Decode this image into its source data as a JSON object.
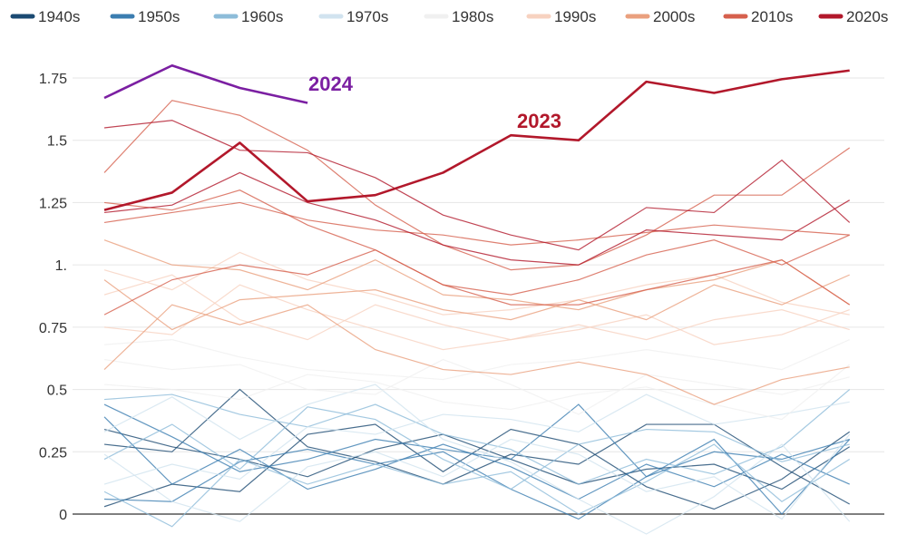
{
  "chart_data": {
    "type": "line",
    "title": "",
    "xlabel": "",
    "ylabel": "",
    "x": [
      1,
      2,
      3,
      4,
      5,
      6,
      7,
      8,
      9,
      10,
      11,
      12
    ],
    "ylim": [
      0,
      1.75
    ],
    "y_ticks": [
      0,
      0.25,
      0.5,
      0.75,
      1,
      1.25,
      1.5,
      1.75
    ],
    "y_tick_labels": [
      "0",
      "0.25",
      "0.5",
      "0.75",
      "1.",
      "1.25",
      "1.5",
      "1.75"
    ],
    "grid": true,
    "legend_position": "top",
    "legend": [
      {
        "label": "1940s",
        "color": "#1b4a72"
      },
      {
        "label": "1950s",
        "color": "#3b7db0"
      },
      {
        "label": "1960s",
        "color": "#8dbcd9"
      },
      {
        "label": "1970s",
        "color": "#d1e3ef"
      },
      {
        "label": "1980s",
        "color": "#f0f0f0"
      },
      {
        "label": "1990s",
        "color": "#f7d2c0"
      },
      {
        "label": "2000s",
        "color": "#eaa07e"
      },
      {
        "label": "2010s",
        "color": "#d6604d"
      },
      {
        "label": "2020s",
        "color": "#b2182b"
      }
    ],
    "series": [
      {
        "decade": "1940s",
        "values": [
          0.03,
          0.12,
          0.09,
          0.32,
          0.36,
          0.17,
          0.34,
          0.28,
          0.11,
          0.02,
          0.14,
          0.33
        ]
      },
      {
        "decade": "1940s",
        "values": [
          0.34,
          0.27,
          0.22,
          0.15,
          0.26,
          0.32,
          0.22,
          0.12,
          0.18,
          0.2,
          0.1,
          0.27
        ]
      },
      {
        "decade": "1940s",
        "values": [
          0.28,
          0.25,
          0.5,
          0.27,
          0.21,
          0.12,
          0.24,
          0.2,
          0.36,
          0.36,
          0.19,
          0.04
        ]
      },
      {
        "decade": "1950s",
        "values": [
          0.06,
          0.05,
          0.21,
          0.26,
          0.2,
          0.25,
          0.1,
          -0.02,
          0.15,
          0.25,
          0.22,
          0.3
        ]
      },
      {
        "decade": "1950s",
        "values": [
          0.39,
          0.12,
          0.26,
          0.1,
          0.18,
          0.28,
          0.19,
          0.06,
          0.2,
          0.11,
          0.24,
          0.12
        ]
      },
      {
        "decade": "1950s",
        "values": [
          0.44,
          0.31,
          0.17,
          0.22,
          0.3,
          0.26,
          0.22,
          0.44,
          0.15,
          0.3,
          0.0,
          0.3
        ]
      },
      {
        "decade": "1960s",
        "values": [
          0.22,
          0.36,
          0.18,
          0.43,
          0.38,
          0.22,
          0.1,
          0.28,
          0.34,
          0.33,
          0.21,
          0.28
        ]
      },
      {
        "decade": "1960s",
        "values": [
          0.46,
          0.48,
          0.4,
          0.35,
          0.44,
          0.32,
          0.26,
          0.12,
          0.22,
          0.16,
          0.27,
          0.5
        ]
      },
      {
        "decade": "1960s",
        "values": [
          0.09,
          -0.05,
          0.22,
          0.12,
          0.2,
          0.12,
          0.17,
          0.0,
          0.13,
          0.28,
          0.05,
          0.22
        ]
      },
      {
        "decade": "1970s",
        "values": [
          0.33,
          0.47,
          0.3,
          0.44,
          0.52,
          0.3,
          0.21,
          0.06,
          -0.08,
          0.07,
          0.28,
          -0.03
        ]
      },
      {
        "decade": "1970s",
        "values": [
          0.12,
          0.2,
          0.14,
          0.35,
          0.32,
          0.4,
          0.38,
          0.33,
          0.48,
          0.36,
          0.4,
          0.45
        ]
      },
      {
        "decade": "1970s",
        "values": [
          0.24,
          0.05,
          -0.03,
          0.19,
          0.25,
          0.15,
          0.3,
          0.24,
          0.09,
          0.15,
          -0.02,
          0.32
        ]
      },
      {
        "decade": "1980s",
        "values": [
          0.52,
          0.5,
          0.46,
          0.56,
          0.53,
          0.45,
          0.42,
          0.48,
          0.51,
          0.44,
          0.38,
          0.6
        ]
      },
      {
        "decade": "1980s",
        "values": [
          0.62,
          0.58,
          0.6,
          0.5,
          0.48,
          0.62,
          0.52,
          0.4,
          0.56,
          0.52,
          0.48,
          0.55
        ]
      },
      {
        "decade": "1980s",
        "values": [
          0.68,
          0.7,
          0.63,
          0.58,
          0.56,
          0.54,
          0.6,
          0.62,
          0.66,
          0.62,
          0.58,
          0.7
        ]
      },
      {
        "decade": "1990s",
        "values": [
          0.75,
          0.72,
          0.92,
          0.82,
          0.74,
          0.66,
          0.7,
          0.76,
          0.7,
          0.78,
          0.82,
          0.74
        ]
      },
      {
        "decade": "1990s",
        "values": [
          0.88,
          0.96,
          0.78,
          0.7,
          0.84,
          0.76,
          0.7,
          0.74,
          0.8,
          0.68,
          0.72,
          0.82
        ]
      },
      {
        "decade": "1990s",
        "values": [
          0.98,
          0.9,
          1.05,
          0.94,
          0.88,
          0.8,
          0.82,
          0.86,
          0.92,
          0.96,
          0.85,
          0.8
        ]
      },
      {
        "decade": "2000s",
        "values": [
          0.58,
          0.84,
          0.76,
          0.84,
          0.66,
          0.58,
          0.56,
          0.61,
          0.56,
          0.44,
          0.54,
          0.59
        ]
      },
      {
        "decade": "2000s",
        "values": [
          0.94,
          0.74,
          0.86,
          0.88,
          0.9,
          0.82,
          0.78,
          0.86,
          0.78,
          0.92,
          0.84,
          0.96
        ]
      },
      {
        "decade": "2000s",
        "values": [
          1.1,
          1.0,
          0.98,
          0.9,
          1.02,
          0.88,
          0.86,
          0.82,
          0.9,
          0.94,
          1.02,
          0.84
        ]
      },
      {
        "decade": "2010s",
        "values": [
          1.17,
          1.21,
          1.25,
          1.18,
          1.14,
          1.12,
          1.08,
          1.1,
          1.13,
          1.16,
          1.14,
          1.12
        ]
      },
      {
        "decade": "2010s",
        "values": [
          0.8,
          0.94,
          1.0,
          0.96,
          1.06,
          0.92,
          0.84,
          0.84,
          0.9,
          0.96,
          1.02,
          0.84
        ]
      },
      {
        "decade": "2010s",
        "values": [
          1.37,
          1.66,
          1.6,
          1.46,
          1.24,
          1.08,
          0.98,
          1.0,
          1.12,
          1.28,
          1.28,
          1.47
        ]
      },
      {
        "decade": "2010s",
        "values": [
          1.25,
          1.22,
          1.3,
          1.16,
          1.06,
          0.92,
          0.88,
          0.94,
          1.04,
          1.1,
          1.0,
          1.12
        ]
      },
      {
        "decade": "2020s",
        "values": [
          1.55,
          1.58,
          1.46,
          1.45,
          1.35,
          1.2,
          1.12,
          1.06,
          1.23,
          1.21,
          1.42,
          1.17
        ]
      },
      {
        "decade": "2020s",
        "values": [
          1.21,
          1.24,
          1.37,
          1.25,
          1.18,
          1.08,
          1.02,
          1.0,
          1.14,
          1.12,
          1.1,
          1.26
        ]
      }
    ],
    "highlighted": [
      {
        "name": "2023",
        "label": "2023",
        "color": "#b2182b",
        "values": [
          1.22,
          1.29,
          1.49,
          1.255,
          1.28,
          1.37,
          1.52,
          1.5,
          1.735,
          1.69,
          1.745,
          1.78
        ]
      },
      {
        "name": "2024",
        "label": "2024",
        "color": "#7b1fa2",
        "values": [
          1.67,
          1.8,
          1.71,
          1.65
        ]
      }
    ]
  }
}
